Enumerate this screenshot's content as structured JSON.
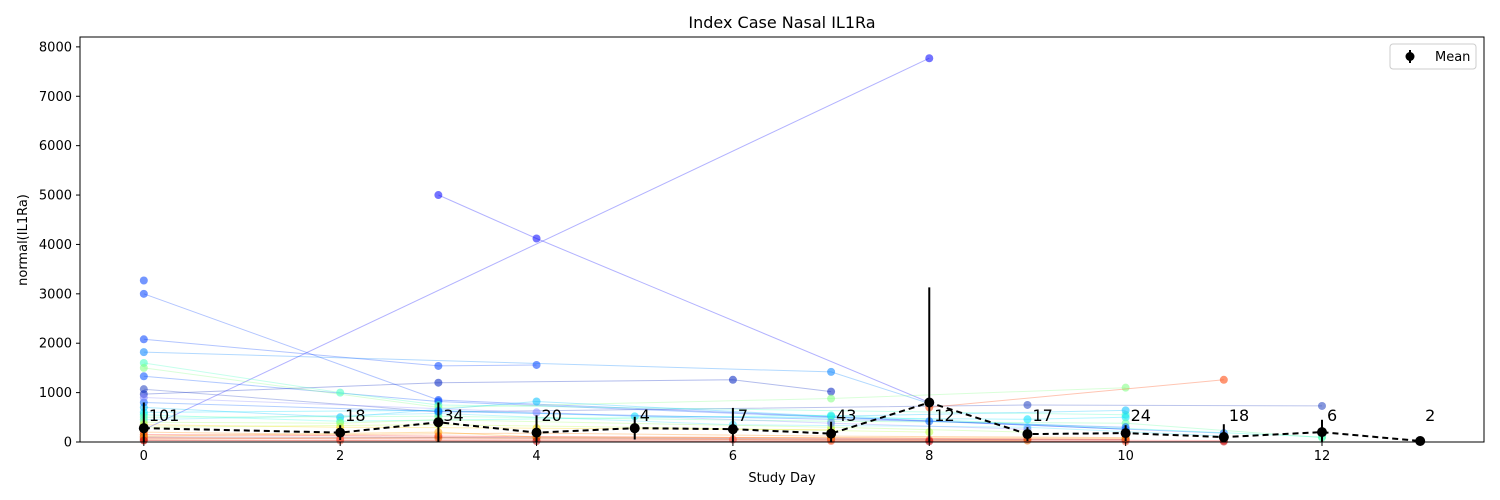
{
  "chart_data": {
    "type": "line",
    "title": "Index Case Nasal IL1Ra",
    "xlabel": "Study Day",
    "ylabel": "normal(IL1Ra)",
    "xlim": [
      -0.65,
      13.65
    ],
    "ylim": [
      0,
      8200
    ],
    "xticks": [
      0,
      2,
      4,
      6,
      8,
      10,
      12
    ],
    "yticks": [
      0,
      1000,
      2000,
      3000,
      4000,
      5000,
      6000,
      7000,
      8000
    ],
    "grid": false,
    "legend": {
      "position": "top-right",
      "entries": [
        "Mean"
      ]
    },
    "mean_series": {
      "name": "Mean",
      "color": "#000000",
      "points": [
        {
          "x": 0,
          "y": 280,
          "err": 520,
          "n": "101"
        },
        {
          "x": 2,
          "y": 190,
          "err": 150,
          "n": "18"
        },
        {
          "x": 3,
          "y": 400,
          "err": 400,
          "n": "34"
        },
        {
          "x": 4,
          "y": 190,
          "err": 350,
          "n": "20"
        },
        {
          "x": 5,
          "y": 280,
          "err": 230,
          "n": "4"
        },
        {
          "x": 6,
          "y": 260,
          "err": 430,
          "n": "7"
        },
        {
          "x": 7,
          "y": 170,
          "err": 240,
          "n": "43"
        },
        {
          "x": 8,
          "y": 800,
          "err": 2330,
          "n": "12"
        },
        {
          "x": 9,
          "y": 160,
          "err": 140,
          "n": "17"
        },
        {
          "x": 10,
          "y": 180,
          "err": 160,
          "n": "24"
        },
        {
          "x": 11,
          "y": 100,
          "err": 260,
          "n": "18"
        },
        {
          "x": 12,
          "y": 200,
          "err": 250,
          "n": "6"
        },
        {
          "x": 13,
          "y": 20,
          "err": 0,
          "n": "2"
        }
      ]
    },
    "subjects": [
      {
        "color": "#0000ff",
        "points": [
          [
            0,
            250
          ],
          [
            8,
            7770
          ]
        ]
      },
      {
        "color": "#0000ff",
        "points": [
          [
            3,
            5000
          ],
          [
            4,
            4120
          ],
          [
            8,
            800
          ]
        ]
      },
      {
        "color": "#0040ff",
        "points": [
          [
            0,
            3000
          ],
          [
            3,
            850
          ],
          [
            10,
            260
          ]
        ]
      },
      {
        "color": "#0040ff",
        "points": [
          [
            0,
            2080
          ],
          [
            3,
            1540
          ],
          [
            4,
            1560
          ]
        ]
      },
      {
        "color": "#0080ff",
        "points": [
          [
            0,
            1820
          ],
          [
            7,
            1420
          ],
          [
            8,
            780
          ]
        ]
      },
      {
        "color": "#0050ff",
        "points": [
          [
            0,
            1330
          ],
          [
            3,
            820
          ],
          [
            11,
            180
          ]
        ]
      },
      {
        "color": "#2040c0",
        "points": [
          [
            0,
            1070
          ],
          [
            3,
            610
          ],
          [
            9,
            750
          ],
          [
            12,
            730
          ]
        ]
      },
      {
        "color": "#0020c0",
        "points": [
          [
            0,
            970
          ],
          [
            3,
            1200
          ],
          [
            6,
            1260
          ],
          [
            7,
            1020
          ]
        ]
      },
      {
        "color": "#0040ff",
        "points": [
          [
            0,
            3270
          ]
        ]
      },
      {
        "color": "#40ffc0",
        "points": [
          [
            0,
            1600
          ],
          [
            2,
            1000
          ],
          [
            3,
            750
          ],
          [
            10,
            550
          ]
        ]
      },
      {
        "color": "#80ff80",
        "points": [
          [
            0,
            1500
          ],
          [
            3,
            700
          ],
          [
            7,
            880
          ],
          [
            10,
            1100
          ]
        ]
      },
      {
        "color": "#ff4000",
        "points": [
          [
            8,
            700
          ],
          [
            11,
            1260
          ]
        ]
      },
      {
        "color": "#00c0ff",
        "points": [
          [
            0,
            700
          ],
          [
            2,
            500
          ],
          [
            4,
            820
          ],
          [
            7,
            520
          ],
          [
            10,
            640
          ]
        ]
      },
      {
        "color": "#00e0ff",
        "points": [
          [
            0,
            600
          ],
          [
            3,
            640
          ],
          [
            5,
            520
          ],
          [
            9,
            460
          ],
          [
            10,
            500
          ]
        ]
      },
      {
        "color": "#20ffe0",
        "points": [
          [
            0,
            550
          ],
          [
            2,
            420
          ],
          [
            7,
            540
          ],
          [
            12,
            100
          ]
        ]
      },
      {
        "color": "#40e0ff",
        "points": [
          [
            0,
            450
          ],
          [
            3,
            580
          ],
          [
            6,
            350
          ],
          [
            9,
            300
          ],
          [
            11,
            120
          ]
        ]
      },
      {
        "color": "#ffd000",
        "points": [
          [
            0,
            350
          ],
          [
            2,
            300
          ],
          [
            4,
            280
          ],
          [
            7,
            250
          ]
        ]
      },
      {
        "color": "#c0ff40",
        "points": [
          [
            0,
            300
          ],
          [
            3,
            350
          ],
          [
            5,
            300
          ],
          [
            8,
            200
          ]
        ]
      },
      {
        "color": "#ff8000",
        "points": [
          [
            0,
            200
          ],
          [
            2,
            150
          ],
          [
            4,
            180
          ],
          [
            7,
            120
          ],
          [
            10,
            90
          ]
        ]
      },
      {
        "color": "#ff0000",
        "points": [
          [
            0,
            150
          ],
          [
            3,
            120
          ],
          [
            7,
            80
          ],
          [
            9,
            60
          ],
          [
            10,
            50
          ]
        ]
      },
      {
        "color": "#800000",
        "points": [
          [
            0,
            100
          ],
          [
            4,
            90
          ],
          [
            7,
            60
          ],
          [
            10,
            40
          ]
        ]
      },
      {
        "color": "#ff4040",
        "points": [
          [
            0,
            80
          ],
          [
            2,
            60
          ],
          [
            6,
            50
          ],
          [
            8,
            40
          ],
          [
            11,
            30
          ]
        ]
      },
      {
        "color": "#e06000",
        "points": [
          [
            0,
            60
          ],
          [
            3,
            80
          ],
          [
            7,
            40
          ],
          [
            9,
            30
          ]
        ]
      },
      {
        "color": "#ffa000",
        "points": [
          [
            0,
            120
          ],
          [
            3,
            200
          ],
          [
            4,
            100
          ],
          [
            7,
            90
          ],
          [
            10,
            70
          ]
        ]
      },
      {
        "color": "#a0ff60",
        "points": [
          [
            0,
            400
          ],
          [
            2,
            380
          ],
          [
            3,
            450
          ],
          [
            7,
            300
          ],
          [
            9,
            200
          ]
        ]
      },
      {
        "color": "#60ffa0",
        "points": [
          [
            0,
            500
          ],
          [
            3,
            520
          ],
          [
            7,
            420
          ],
          [
            10,
            380
          ],
          [
            12,
            90
          ]
        ]
      },
      {
        "color": "#0060ff",
        "points": [
          [
            0,
            800
          ],
          [
            3,
            620
          ],
          [
            8,
            420
          ],
          [
            10,
            300
          ]
        ]
      },
      {
        "color": "#8080ff",
        "points": [
          [
            0,
            900
          ],
          [
            4,
            600
          ],
          [
            7,
            380
          ],
          [
            9,
            260
          ]
        ]
      },
      {
        "color": "#ff6040",
        "points": [
          [
            0,
            40
          ],
          [
            2,
            30
          ],
          [
            7,
            20
          ],
          [
            10,
            10
          ]
        ]
      },
      {
        "color": "#c00000",
        "points": [
          [
            0,
            30
          ],
          [
            4,
            20
          ],
          [
            8,
            15
          ],
          [
            11,
            10
          ]
        ]
      }
    ]
  }
}
